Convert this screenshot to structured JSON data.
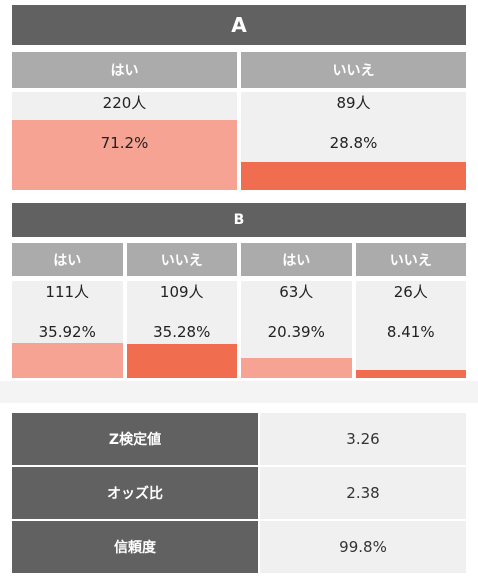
{
  "section_a": {
    "title": "A",
    "cells": [
      {
        "label": "はい",
        "percent": 71.2,
        "percent_label": "71.2%",
        "count_label": "220人",
        "color": "#f6a393"
      },
      {
        "label": "いいえ",
        "percent": 28.8,
        "percent_label": "28.8%",
        "count_label": "89人",
        "color": "#f06e4f"
      }
    ]
  },
  "section_b": {
    "title": "B",
    "cells": [
      {
        "label": "はい",
        "percent": 35.92,
        "percent_label": "35.92%",
        "count_label": "111人",
        "color": "#f6a393"
      },
      {
        "label": "いいえ",
        "percent": 35.28,
        "percent_label": "35.28%",
        "count_label": "109人",
        "color": "#f06e4f"
      },
      {
        "label": "はい",
        "percent": 20.39,
        "percent_label": "20.39%",
        "count_label": "63人",
        "color": "#f6a393"
      },
      {
        "label": "いいえ",
        "percent": 8.41,
        "percent_label": "8.41%",
        "count_label": "26人",
        "color": "#f06e4f"
      }
    ]
  },
  "table": {
    "rows": [
      [
        "Z検定値",
        "3.26"
      ],
      [
        "オッズ比",
        "2.38"
      ],
      [
        "信頼度",
        "99.8%"
      ]
    ]
  }
}
